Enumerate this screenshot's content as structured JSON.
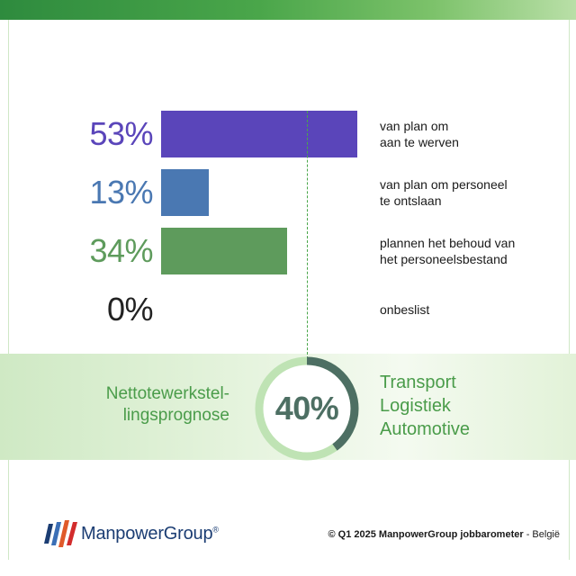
{
  "colors": {
    "bar_recruit": "#5a45ba",
    "bar_layoff": "#4a78b2",
    "bar_retain": "#5e9b5c",
    "accent_green": "#4a9c4a",
    "ring_track": "#bfe3b4",
    "ring_value": "#4d6f63",
    "brand_blue": "#1b3d73"
  },
  "chart_data": {
    "type": "bar",
    "orientation": "horizontal",
    "categories": [
      "van plan om aan te werven",
      "van plan om personeel te ontslaan",
      "plannen het behoud van het personeelsbestand",
      "onbeslist"
    ],
    "values": [
      53,
      13,
      34,
      0
    ],
    "value_labels": [
      "53%",
      "13%",
      "34%",
      "0%"
    ],
    "label_lines": [
      [
        "van plan om",
        "aan te werven"
      ],
      [
        "van plan om personeel",
        "te ontslaan"
      ],
      [
        "plannen het behoud van",
        "het personeelsbestand"
      ],
      [
        "onbeslist"
      ]
    ],
    "xlim": [
      0,
      100
    ]
  },
  "net": {
    "label_lines": [
      "Nettotewerkstel-",
      "lingsprognose"
    ],
    "value": 40,
    "value_label": "40%"
  },
  "sectors": [
    "Transport",
    "Logistiek",
    "Automotive"
  ],
  "brand": {
    "name": "ManpowerGroup",
    "registered": "®"
  },
  "footer": {
    "prefix": "© Q1 2025 ManpowerGroup jobbarometer",
    "suffix": " - België"
  }
}
